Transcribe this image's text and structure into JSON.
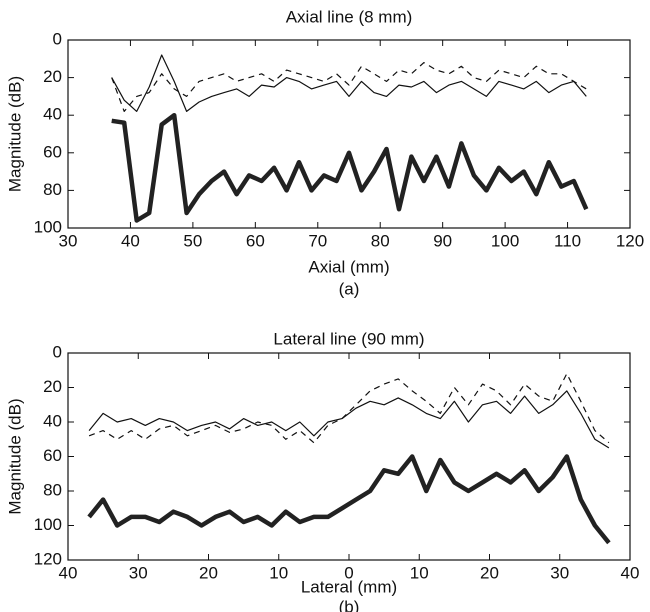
{
  "chart_data": [
    {
      "type": "line",
      "title": "Axial line (8 mm)",
      "xlabel": "Axial (mm)",
      "ylabel": "Magnitude (dB)",
      "caption": "(a)",
      "xlim": [
        30,
        120
      ],
      "xticks": [
        30,
        40,
        50,
        60,
        70,
        80,
        90,
        100,
        110,
        120
      ],
      "ylim": [
        0,
        100
      ],
      "yticks": [
        0,
        20,
        40,
        60,
        80,
        100
      ],
      "y_inverted": true,
      "x": [
        37,
        39,
        41,
        43,
        45,
        47,
        49,
        51,
        53,
        55,
        57,
        59,
        61,
        63,
        65,
        67,
        69,
        71,
        73,
        75,
        77,
        79,
        81,
        83,
        85,
        87,
        89,
        91,
        93,
        95,
        97,
        99,
        101,
        103,
        105,
        107,
        109,
        111,
        113
      ],
      "series": [
        {
          "color": "#111111",
          "style": "thin",
          "values": [
            20,
            32,
            38,
            25,
            8,
            22,
            38,
            33,
            30,
            28,
            26,
            30,
            24,
            25,
            20,
            22,
            26,
            24,
            22,
            30,
            22,
            28,
            30,
            24,
            25,
            22,
            28,
            24,
            22,
            26,
            30,
            22,
            24,
            26,
            22,
            28,
            24,
            22,
            30
          ]
        },
        {
          "color": "#111111",
          "style": "dashed",
          "values": [
            20,
            38,
            30,
            28,
            18,
            26,
            30,
            22,
            20,
            18,
            22,
            20,
            18,
            22,
            16,
            18,
            20,
            22,
            18,
            24,
            14,
            18,
            22,
            16,
            18,
            12,
            16,
            18,
            14,
            20,
            22,
            16,
            18,
            20,
            14,
            18,
            18,
            22,
            26
          ]
        },
        {
          "color": "#222222",
          "style": "thick",
          "values": [
            43,
            44,
            96,
            92,
            45,
            40,
            92,
            82,
            75,
            70,
            82,
            72,
            75,
            68,
            80,
            65,
            80,
            72,
            75,
            60,
            80,
            70,
            58,
            90,
            62,
            75,
            62,
            78,
            55,
            72,
            80,
            68,
            75,
            70,
            82,
            65,
            78,
            75,
            90
          ]
        }
      ]
    },
    {
      "type": "line",
      "title": "Lateral line (90 mm)",
      "xlabel": "Lateral (mm)",
      "ylabel": "Magnitude (dB)",
      "caption": "(b)",
      "xlim": [
        -40,
        40
      ],
      "xticks": [
        {
          "value": -40,
          "label": "40"
        },
        {
          "value": -30,
          "label": "30"
        },
        {
          "value": -20,
          "label": "20"
        },
        {
          "value": -10,
          "label": "10"
        },
        0,
        10,
        20,
        30,
        40
      ],
      "ylim": [
        0,
        120
      ],
      "yticks": [
        0,
        20,
        40,
        60,
        80,
        100,
        120
      ],
      "y_inverted": true,
      "x": [
        -37,
        -35,
        -33,
        -31,
        -29,
        -27,
        -25,
        -23,
        -21,
        -19,
        -17,
        -15,
        -13,
        -11,
        -9,
        -7,
        -5,
        -3,
        -1,
        1,
        3,
        5,
        7,
        9,
        11,
        13,
        15,
        17,
        19,
        21,
        23,
        25,
        27,
        29,
        31,
        33,
        35,
        37
      ],
      "series": [
        {
          "color": "#111111",
          "style": "thin",
          "values": [
            45,
            35,
            40,
            38,
            42,
            38,
            40,
            45,
            42,
            40,
            44,
            38,
            42,
            40,
            45,
            40,
            48,
            40,
            38,
            32,
            28,
            30,
            26,
            30,
            35,
            38,
            28,
            40,
            30,
            28,
            35,
            25,
            35,
            30,
            22,
            35,
            50,
            55
          ]
        },
        {
          "color": "#111111",
          "style": "dashed",
          "values": [
            48,
            45,
            50,
            45,
            50,
            44,
            42,
            48,
            45,
            42,
            46,
            44,
            40,
            42,
            50,
            45,
            52,
            42,
            38,
            30,
            22,
            18,
            15,
            22,
            28,
            35,
            20,
            30,
            18,
            22,
            30,
            18,
            25,
            28,
            12,
            28,
            45,
            52
          ]
        },
        {
          "color": "#222222",
          "style": "thick",
          "values": [
            95,
            85,
            100,
            95,
            95,
            98,
            92,
            95,
            100,
            95,
            92,
            98,
            95,
            100,
            92,
            98,
            95,
            95,
            90,
            85,
            80,
            68,
            70,
            60,
            80,
            62,
            75,
            80,
            75,
            70,
            75,
            68,
            80,
            72,
            60,
            85,
            100,
            110
          ]
        }
      ]
    }
  ]
}
